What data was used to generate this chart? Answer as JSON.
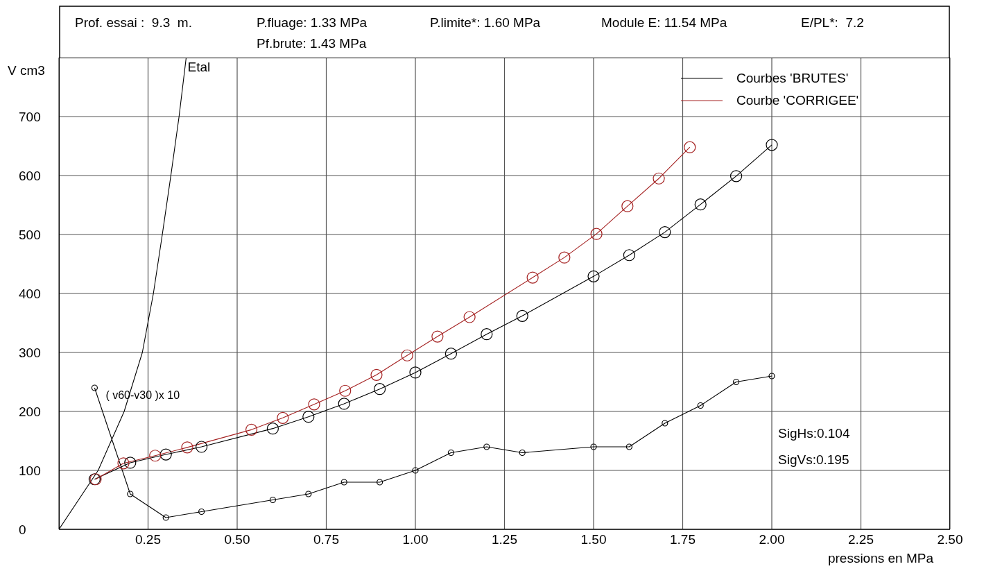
{
  "chart_data": {
    "type": "line",
    "xlabel": "pressions en MPa",
    "ylabel": "V cm3",
    "annotations": [
      "Prof. essai :  9.3  m.",
      "P.fluage: 1.33 MPa",
      "P.limite*: 1.60 MPa",
      "Module E: 11.54 MPa",
      "E/PL*:  7.2",
      "Pf.brute: 1.43 MPa",
      "SigHs:0.104",
      "SigVs:0.195"
    ],
    "xlim": [
      0,
      2.5
    ],
    "xticks": [
      0.25,
      {
        "value": 0.5,
        "label": "0.50"
      },
      0.75,
      {
        "value": 1,
        "label": "1.00"
      },
      1.25,
      {
        "value": 1.5,
        "label": "1.50"
      },
      1.75,
      {
        "value": 2,
        "label": "2.00"
      },
      2.25,
      {
        "value": 2.5,
        "label": "2.50"
      }
    ],
    "ylim": [
      0,
      800
    ],
    "yticks": [
      0,
      100,
      200,
      300,
      400,
      500,
      600,
      700
    ],
    "grid": true,
    "legend": "top right",
    "marker": "circle",
    "line_style": "solid",
    "series": [
      {
        "name": "Courbes 'BRUTES'",
        "color": "#000000",
        "x": [
          0.1,
          0.2,
          0.3,
          0.4,
          0.6,
          0.7,
          0.8,
          0.9,
          1.0,
          1.1,
          1.2,
          1.3,
          1.5,
          1.6,
          1.7,
          1.8,
          1.9,
          2.0
        ],
        "values": [
          85,
          113,
          127,
          140,
          171,
          191,
          213,
          238,
          266,
          298,
          331,
          362,
          429,
          465,
          504,
          551,
          599,
          652
        ]
      },
      {
        "name": "Courbe 'CORRIGEE'",
        "color": "#a52222",
        "x": [
          0.103,
          0.181,
          0.27,
          0.36,
          0.54,
          0.628,
          0.716,
          0.803,
          0.891,
          0.977,
          1.062,
          1.152,
          1.329,
          1.418,
          1.508,
          1.595,
          1.683,
          1.77
        ],
        "values": [
          85,
          112,
          125,
          139,
          169,
          189,
          212,
          235,
          262,
          295,
          327,
          360,
          427,
          461,
          501,
          548,
          595,
          648
        ]
      },
      {
        "name": "( v60-v30 )x 10",
        "color": "#000000",
        "x": [
          0.1,
          0.2,
          0.3,
          0.4,
          0.6,
          0.7,
          0.8,
          0.9,
          1.0,
          1.1,
          1.2,
          1.3,
          1.5,
          1.6,
          1.7,
          1.8,
          1.9,
          2.0
        ],
        "values": [
          240,
          60,
          20,
          30,
          50,
          60,
          80,
          80,
          100,
          130,
          140,
          130,
          140,
          140,
          180,
          210,
          250,
          260
        ]
      },
      {
        "name": "Etal",
        "color": "#000000",
        "marker": "none",
        "x": [
          0,
          0.11,
          0.183,
          0.234,
          0.265,
          0.29,
          0.314,
          0.337,
          0.357
        ],
        "values": [
          0,
          100,
          200,
          300,
          400,
          500,
          600,
          700,
          800
        ]
      }
    ]
  }
}
